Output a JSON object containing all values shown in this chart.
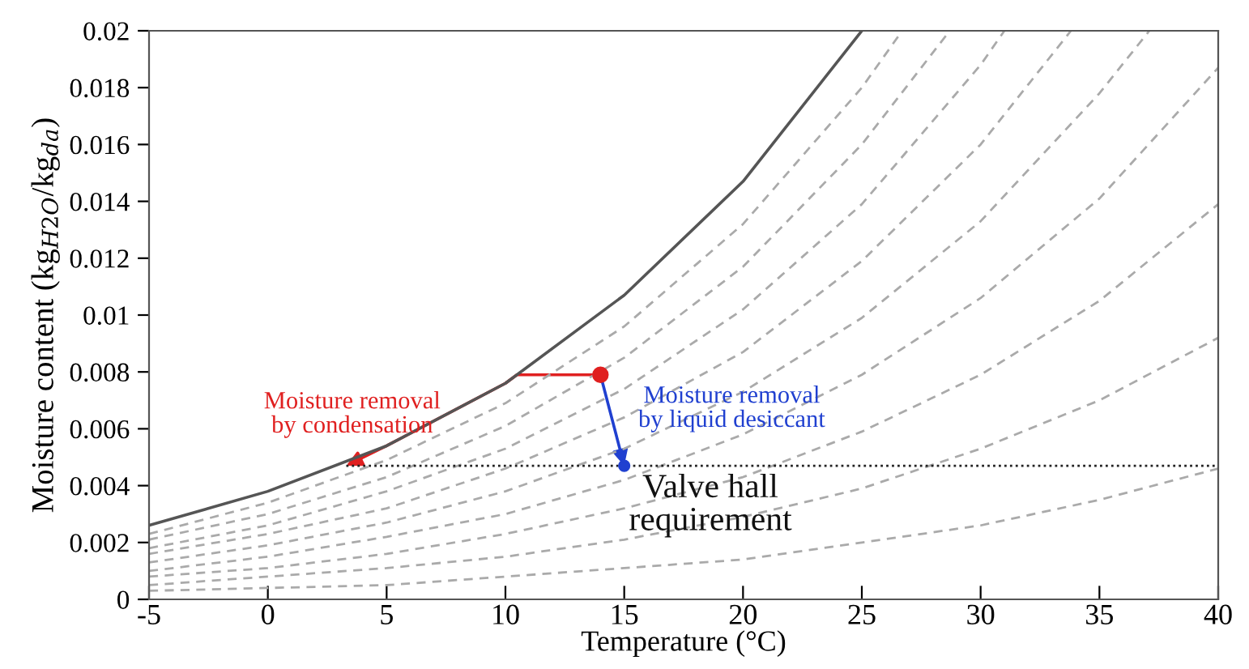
{
  "chart_data": {
    "type": "line",
    "xlabel": "Temperature (°C)",
    "ylabel": "Moisture content (kg$_{H2O}$/kg$_{da}$)",
    "xlim": [
      -5,
      40
    ],
    "ylim": [
      0,
      0.02
    ],
    "xticks": [
      -5,
      0,
      5,
      10,
      15,
      20,
      25,
      30,
      35,
      40
    ],
    "yticks": [
      0,
      0.002,
      0.004,
      0.006,
      0.008,
      0.01,
      0.012,
      0.014,
      0.016,
      0.018,
      0.02
    ],
    "grid": false,
    "legend": false,
    "series": [
      {
        "line_style": "solid",
        "color": "#555555",
        "x": [
          -5,
          0,
          5,
          10,
          15,
          20,
          25
        ],
        "values": [
          0.0026,
          0.0038,
          0.0054,
          0.0076,
          0.0107,
          0.0147,
          0.02
        ]
      },
      {
        "line_style": "dashed",
        "color": "#aaaaaa",
        "x": [
          -5,
          0,
          5,
          10,
          15,
          20,
          25,
          26.7
        ],
        "values": [
          0.0023,
          0.0034,
          0.0049,
          0.0069,
          0.0096,
          0.0132,
          0.018,
          0.02
        ]
      },
      {
        "line_style": "dashed",
        "color": "#aaaaaa",
        "x": [
          -5,
          0,
          5,
          10,
          15,
          20,
          25,
          28.7
        ],
        "values": [
          0.0021,
          0.003,
          0.0043,
          0.0061,
          0.0085,
          0.0117,
          0.016,
          0.02
        ]
      },
      {
        "line_style": "dashed",
        "color": "#aaaaaa",
        "x": [
          -5,
          0,
          5,
          10,
          15,
          20,
          25,
          30,
          31
        ],
        "values": [
          0.0018,
          0.0026,
          0.0038,
          0.0053,
          0.0074,
          0.0102,
          0.0139,
          0.0188,
          0.02
        ]
      },
      {
        "line_style": "dashed",
        "color": "#aaaaaa",
        "x": [
          -5,
          0,
          5,
          10,
          15,
          20,
          25,
          30,
          33.8
        ],
        "values": [
          0.0016,
          0.0023,
          0.0032,
          0.0046,
          0.0064,
          0.0087,
          0.0119,
          0.016,
          0.02
        ]
      },
      {
        "line_style": "dashed",
        "color": "#aaaaaa",
        "x": [
          -5,
          0,
          5,
          10,
          15,
          20,
          25,
          30,
          35,
          37.1
        ],
        "values": [
          0.0013,
          0.0019,
          0.0027,
          0.0038,
          0.0053,
          0.0073,
          0.0099,
          0.0133,
          0.0178,
          0.02
        ]
      },
      {
        "line_style": "dashed",
        "color": "#aaaaaa",
        "x": [
          -5,
          0,
          5,
          10,
          15,
          20,
          25,
          30,
          35,
          40
        ],
        "values": [
          0.001,
          0.0015,
          0.0022,
          0.003,
          0.0042,
          0.0058,
          0.0079,
          0.0106,
          0.0141,
          0.0187
        ]
      },
      {
        "line_style": "dashed",
        "color": "#aaaaaa",
        "x": [
          -5,
          0,
          5,
          10,
          15,
          20,
          25,
          30,
          35,
          40
        ],
        "values": [
          0.0008,
          0.0011,
          0.0016,
          0.0023,
          0.0032,
          0.0043,
          0.0059,
          0.0079,
          0.0105,
          0.0139
        ]
      },
      {
        "line_style": "dashed",
        "color": "#aaaaaa",
        "x": [
          -5,
          0,
          5,
          10,
          15,
          20,
          25,
          30,
          35,
          40
        ],
        "values": [
          0.0005,
          0.0008,
          0.0011,
          0.0015,
          0.0021,
          0.0029,
          0.0039,
          0.0053,
          0.007,
          0.0092
        ]
      },
      {
        "line_style": "dashed",
        "color": "#aaaaaa",
        "x": [
          -5,
          0,
          5,
          10,
          15,
          20,
          25,
          30,
          35,
          40
        ],
        "values": [
          0.0003,
          0.0004,
          0.0005,
          0.0008,
          0.0011,
          0.0014,
          0.002,
          0.0026,
          0.0035,
          0.0046
        ]
      },
      {
        "line_style": "dotted",
        "color": "#222222",
        "x": [
          3.3,
          40
        ],
        "values": [
          0.0047,
          0.0047
        ]
      },
      {
        "type": "scatter",
        "marker": "circle",
        "color": "#e02020",
        "x": [
          14
        ],
        "values": [
          0.0079
        ]
      },
      {
        "type": "scatter",
        "marker": "circle",
        "color": "#2040d0",
        "x": [
          15
        ],
        "values": [
          0.0047
        ]
      }
    ],
    "annotations": [
      "Moisture removal\nby condensation",
      "Moisture removal\nby liquid desiccant",
      "Valve hall\nrequirement"
    ]
  }
}
